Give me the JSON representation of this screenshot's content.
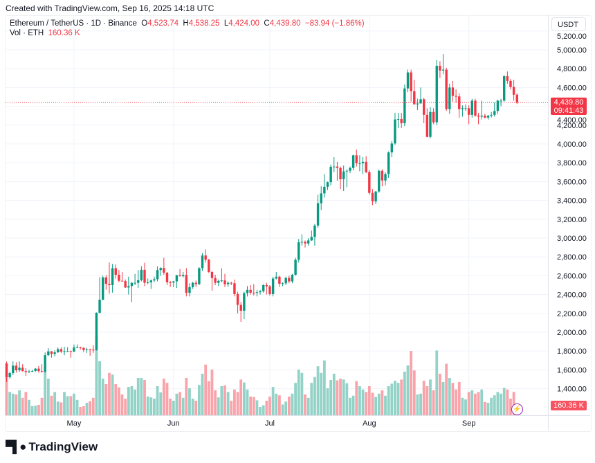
{
  "credit": "Created with TradingView.com, Sep 16, 2025 14:18 UTC",
  "legend": {
    "symbol": "Ethereum / TetherUS · 1D · Binance",
    "open_label": "O",
    "open": "4,523.74",
    "high_label": "H",
    "high": "4,538.25",
    "low_label": "L",
    "low": "4,424.00",
    "close_label": "C",
    "close": "4,439.80",
    "change": "−83.94 (−1.86%)",
    "vol_label": "Vol · ETH",
    "vol_value": "160.36 K"
  },
  "price_axis": {
    "unit": "USDT",
    "last_price": "4,439.80",
    "countdown": "09:41:43",
    "volume_tag": "160.36 K"
  },
  "logo_text": "TradingView",
  "colors": {
    "up": "#089981",
    "down": "#f23645",
    "up_volume": "#92d2c7",
    "down_volume": "#f9a3aa",
    "grid": "#f0f3fa",
    "price_line": "#f23645"
  },
  "icons": {
    "live": "lightning-icon",
    "logo": "tradingview-logo-icon"
  },
  "chart_data": {
    "type": "candlestick",
    "title": "",
    "xlabel": "",
    "ylabel": "",
    "ylim": [
      1200,
      5200
    ],
    "y_ticks": [
      "1,400.00",
      "1,600.00",
      "1,800.00",
      "2,000.00",
      "2,200.00",
      "2,400.00",
      "2,600.00",
      "2,800.00",
      "3,000.00",
      "3,200.00",
      "3,400.00",
      "3,600.00",
      "3,800.00",
      "4,000.00",
      "4,200.00",
      "4,400.00",
      "4,600.00",
      "4,800.00",
      "5,000.00",
      "5,200.00"
    ],
    "x_ticks": [
      {
        "label": "May",
        "date": "2025-05-01"
      },
      {
        "label": "Jun",
        "date": "2025-06-01"
      },
      {
        "label": "Jul",
        "date": "2025-07-01"
      },
      {
        "label": "Aug",
        "date": "2025-08-01"
      },
      {
        "label": "Sep",
        "date": "2025-09-01"
      }
    ],
    "grid": true,
    "last_price": 4439.8,
    "columns": [
      "date",
      "open",
      "high",
      "low",
      "close",
      "volume_k"
    ],
    "candles": [
      [
        "2025-04-10",
        1668,
        1688,
        1471,
        1522,
        1070
      ],
      [
        "2025-04-11",
        1522,
        1580,
        1505,
        1566,
        560
      ],
      [
        "2025-04-12",
        1566,
        1690,
        1544,
        1645,
        520
      ],
      [
        "2025-04-13",
        1645,
        1680,
        1570,
        1595,
        500
      ],
      [
        "2025-04-14",
        1595,
        1690,
        1580,
        1623,
        600
      ],
      [
        "2025-04-15",
        1623,
        1660,
        1580,
        1588,
        420
      ],
      [
        "2025-04-16",
        1588,
        1618,
        1535,
        1577,
        560
      ],
      [
        "2025-04-17",
        1577,
        1600,
        1565,
        1583,
        370
      ],
      [
        "2025-04-18",
        1583,
        1600,
        1575,
        1588,
        220
      ],
      [
        "2025-04-19",
        1588,
        1620,
        1580,
        1613,
        230
      ],
      [
        "2025-04-20",
        1613,
        1640,
        1570,
        1587,
        250
      ],
      [
        "2025-04-21",
        1587,
        1660,
        1570,
        1580,
        420
      ],
      [
        "2025-04-22",
        1580,
        1785,
        1570,
        1756,
        1100
      ],
      [
        "2025-04-23",
        1756,
        1830,
        1745,
        1796,
        880
      ],
      [
        "2025-04-24",
        1796,
        1800,
        1730,
        1769,
        470
      ],
      [
        "2025-04-25",
        1769,
        1807,
        1741,
        1786,
        560
      ],
      [
        "2025-04-26",
        1786,
        1838,
        1781,
        1820,
        330
      ],
      [
        "2025-04-27",
        1820,
        1840,
        1780,
        1792,
        310
      ],
      [
        "2025-04-28",
        1792,
        1845,
        1755,
        1798,
        560
      ],
      [
        "2025-04-29",
        1798,
        1840,
        1790,
        1799,
        460
      ],
      [
        "2025-04-30",
        1799,
        1805,
        1730,
        1793,
        460
      ],
      [
        "2025-05-01",
        1793,
        1870,
        1790,
        1838,
        520
      ],
      [
        "2025-05-02",
        1838,
        1870,
        1830,
        1842,
        370
      ],
      [
        "2025-05-03",
        1842,
        1845,
        1815,
        1834,
        200
      ],
      [
        "2025-05-04",
        1834,
        1838,
        1790,
        1810,
        220
      ],
      [
        "2025-05-05",
        1810,
        1835,
        1780,
        1816,
        300
      ],
      [
        "2025-05-06",
        1816,
        1825,
        1750,
        1814,
        340
      ],
      [
        "2025-05-07",
        1814,
        1860,
        1780,
        1810,
        420
      ],
      [
        "2025-05-08",
        1810,
        2210,
        1805,
        2207,
        1900
      ],
      [
        "2025-05-09",
        2207,
        2585,
        2200,
        2345,
        1300
      ],
      [
        "2025-05-10",
        2345,
        2600,
        2340,
        2582,
        880
      ],
      [
        "2025-05-11",
        2582,
        2605,
        2450,
        2514,
        750
      ],
      [
        "2025-05-12",
        2514,
        2740,
        2410,
        2500,
        1020
      ],
      [
        "2025-05-13",
        2500,
        2725,
        2420,
        2680,
        980
      ],
      [
        "2025-05-14",
        2680,
        2720,
        2570,
        2610,
        750
      ],
      [
        "2025-05-15",
        2610,
        2660,
        2530,
        2546,
        670
      ],
      [
        "2025-05-16",
        2546,
        2640,
        2540,
        2543,
        500
      ],
      [
        "2025-05-17",
        2543,
        2560,
        2470,
        2475,
        400
      ],
      [
        "2025-05-18",
        2475,
        2590,
        2400,
        2490,
        680
      ],
      [
        "2025-05-19",
        2490,
        2530,
        2320,
        2525,
        700
      ],
      [
        "2025-05-20",
        2525,
        2620,
        2500,
        2525,
        620
      ],
      [
        "2025-05-21",
        2525,
        2660,
        2470,
        2552,
        900
      ],
      [
        "2025-05-22",
        2552,
        2700,
        2540,
        2663,
        900
      ],
      [
        "2025-05-23",
        2663,
        2738,
        2490,
        2525,
        850
      ],
      [
        "2025-05-24",
        2525,
        2570,
        2510,
        2530,
        450
      ],
      [
        "2025-05-25",
        2530,
        2560,
        2460,
        2550,
        430
      ],
      [
        "2025-05-26",
        2550,
        2590,
        2530,
        2563,
        400
      ],
      [
        "2025-05-27",
        2563,
        2700,
        2540,
        2660,
        700
      ],
      [
        "2025-05-28",
        2660,
        2690,
        2600,
        2682,
        550
      ],
      [
        "2025-05-29",
        2682,
        2790,
        2610,
        2632,
        880
      ],
      [
        "2025-05-30",
        2632,
        2640,
        2500,
        2530,
        780
      ],
      [
        "2025-05-31",
        2530,
        2545,
        2480,
        2528,
        400
      ],
      [
        "2025-06-01",
        2528,
        2545,
        2480,
        2540,
        350
      ],
      [
        "2025-06-02",
        2540,
        2610,
        2470,
        2605,
        520
      ],
      [
        "2025-06-03",
        2605,
        2670,
        2590,
        2595,
        560
      ],
      [
        "2025-06-04",
        2595,
        2640,
        2580,
        2608,
        420
      ],
      [
        "2025-06-05",
        2608,
        2680,
        2380,
        2418,
        900
      ],
      [
        "2025-06-06",
        2418,
        2520,
        2380,
        2479,
        650
      ],
      [
        "2025-06-07",
        2479,
        2535,
        2460,
        2525,
        400
      ],
      [
        "2025-06-08",
        2525,
        2550,
        2480,
        2510,
        350
      ],
      [
        "2025-06-09",
        2510,
        2690,
        2500,
        2680,
        730
      ],
      [
        "2025-06-10",
        2680,
        2840,
        2650,
        2815,
        1000
      ],
      [
        "2025-06-11",
        2815,
        2880,
        2740,
        2770,
        1220
      ],
      [
        "2025-06-12",
        2770,
        2780,
        2630,
        2640,
        820
      ],
      [
        "2025-06-13",
        2640,
        2650,
        2440,
        2575,
        1100
      ],
      [
        "2025-06-14",
        2575,
        2610,
        2500,
        2525,
        600
      ],
      [
        "2025-06-15",
        2525,
        2560,
        2490,
        2545,
        430
      ],
      [
        "2025-06-16",
        2545,
        2680,
        2530,
        2550,
        700
      ],
      [
        "2025-06-17",
        2550,
        2620,
        2480,
        2510,
        720
      ],
      [
        "2025-06-18",
        2510,
        2540,
        2480,
        2525,
        560
      ],
      [
        "2025-06-19",
        2525,
        2535,
        2500,
        2520,
        350
      ],
      [
        "2025-06-20",
        2520,
        2560,
        2380,
        2405,
        620
      ],
      [
        "2025-06-21",
        2405,
        2430,
        2200,
        2290,
        560
      ],
      [
        "2025-06-22",
        2290,
        2320,
        2110,
        2228,
        860
      ],
      [
        "2025-06-23",
        2228,
        2430,
        2140,
        2415,
        790
      ],
      [
        "2025-06-24",
        2415,
        2490,
        2380,
        2450,
        620
      ],
      [
        "2025-06-25",
        2450,
        2500,
        2400,
        2420,
        450
      ],
      [
        "2025-06-26",
        2420,
        2510,
        2390,
        2418,
        440
      ],
      [
        "2025-06-27",
        2418,
        2450,
        2380,
        2425,
        360
      ],
      [
        "2025-06-28",
        2425,
        2450,
        2400,
        2435,
        200
      ],
      [
        "2025-06-29",
        2435,
        2510,
        2420,
        2500,
        240
      ],
      [
        "2025-06-30",
        2500,
        2525,
        2400,
        2487,
        350
      ],
      [
        "2025-07-01",
        2487,
        2500,
        2390,
        2405,
        450
      ],
      [
        "2025-07-02",
        2405,
        2590,
        2380,
        2570,
        680
      ],
      [
        "2025-07-03",
        2570,
        2640,
        2560,
        2590,
        520
      ],
      [
        "2025-07-04",
        2590,
        2600,
        2480,
        2515,
        480
      ],
      [
        "2025-07-05",
        2515,
        2530,
        2490,
        2520,
        260
      ],
      [
        "2025-07-06",
        2520,
        2590,
        2500,
        2577,
        330
      ],
      [
        "2025-07-07",
        2577,
        2600,
        2520,
        2540,
        450
      ],
      [
        "2025-07-08",
        2540,
        2620,
        2520,
        2610,
        520
      ],
      [
        "2025-07-09",
        2610,
        2790,
        2600,
        2770,
        780
      ],
      [
        "2025-07-10",
        2770,
        2990,
        2740,
        2955,
        1100
      ],
      [
        "2025-07-11",
        2955,
        3040,
        2920,
        2960,
        1020
      ],
      [
        "2025-07-12",
        2960,
        2975,
        2900,
        2943,
        500
      ],
      [
        "2025-07-13",
        2943,
        3000,
        2920,
        2975,
        420
      ],
      [
        "2025-07-14",
        2975,
        3080,
        2970,
        3013,
        780
      ],
      [
        "2025-07-15",
        3013,
        3150,
        2920,
        3133,
        920
      ],
      [
        "2025-07-16",
        3133,
        3460,
        3110,
        3370,
        1180
      ],
      [
        "2025-07-17",
        3370,
        3550,
        3300,
        3475,
        1020
      ],
      [
        "2025-07-18",
        3475,
        3680,
        3430,
        3545,
        1320
      ],
      [
        "2025-07-19",
        3545,
        3600,
        3510,
        3594,
        650
      ],
      [
        "2025-07-20",
        3594,
        3780,
        3560,
        3758,
        850
      ],
      [
        "2025-07-21",
        3758,
        3860,
        3700,
        3760,
        1000
      ],
      [
        "2025-07-22",
        3760,
        3810,
        3610,
        3745,
        840
      ],
      [
        "2025-07-23",
        3745,
        3760,
        3520,
        3625,
        880
      ],
      [
        "2025-07-24",
        3625,
        3770,
        3500,
        3708,
        860
      ],
      [
        "2025-07-25",
        3708,
        3730,
        3540,
        3715,
        770
      ],
      [
        "2025-07-26",
        3715,
        3760,
        3690,
        3745,
        420
      ],
      [
        "2025-07-27",
        3745,
        3885,
        3720,
        3880,
        470
      ],
      [
        "2025-07-28",
        3880,
        3940,
        3760,
        3795,
        820
      ],
      [
        "2025-07-29",
        3795,
        3880,
        3710,
        3795,
        700
      ],
      [
        "2025-07-30",
        3795,
        3860,
        3680,
        3810,
        620
      ],
      [
        "2025-07-31",
        3810,
        3870,
        3690,
        3700,
        560
      ],
      [
        "2025-08-01",
        3700,
        3720,
        3460,
        3480,
        700
      ],
      [
        "2025-08-02",
        3480,
        3520,
        3350,
        3390,
        540
      ],
      [
        "2025-08-03",
        3390,
        3500,
        3360,
        3495,
        440
      ],
      [
        "2025-08-04",
        3495,
        3730,
        3480,
        3715,
        520
      ],
      [
        "2025-08-05",
        3715,
        3730,
        3550,
        3612,
        600
      ],
      [
        "2025-08-06",
        3612,
        3700,
        3560,
        3680,
        470
      ],
      [
        "2025-08-07",
        3680,
        3920,
        3640,
        3910,
        700
      ],
      [
        "2025-08-08",
        3910,
        4030,
        3860,
        4005,
        760
      ],
      [
        "2025-08-09",
        4005,
        4330,
        3990,
        4260,
        830
      ],
      [
        "2025-08-10",
        4260,
        4330,
        4170,
        4265,
        780
      ],
      [
        "2025-08-11",
        4265,
        4330,
        4170,
        4220,
        860
      ],
      [
        "2025-08-12",
        4220,
        4630,
        4190,
        4590,
        1050
      ],
      [
        "2025-08-13",
        4590,
        4790,
        4550,
        4760,
        1200
      ],
      [
        "2025-08-14",
        4760,
        4790,
        4450,
        4560,
        1550
      ],
      [
        "2025-08-15",
        4560,
        4680,
        4420,
        4420,
        1080
      ],
      [
        "2025-08-16",
        4420,
        4480,
        4360,
        4430,
        500
      ],
      [
        "2025-08-17",
        4430,
        4600,
        4430,
        4475,
        520
      ],
      [
        "2025-08-18",
        4475,
        4490,
        4220,
        4310,
        830
      ],
      [
        "2025-08-19",
        4310,
        4380,
        4070,
        4075,
        700
      ],
      [
        "2025-08-20",
        4075,
        4390,
        4060,
        4340,
        860
      ],
      [
        "2025-08-21",
        4340,
        4380,
        4210,
        4230,
        600
      ],
      [
        "2025-08-22",
        4230,
        4890,
        4200,
        4830,
        1560
      ],
      [
        "2025-08-23",
        4830,
        4880,
        4700,
        4780,
        1000
      ],
      [
        "2025-08-24",
        4780,
        4955,
        4740,
        4790,
        800
      ],
      [
        "2025-08-25",
        4790,
        4810,
        4350,
        4370,
        1240
      ],
      [
        "2025-08-26",
        4370,
        4640,
        4320,
        4600,
        900
      ],
      [
        "2025-08-27",
        4600,
        4670,
        4450,
        4510,
        780
      ],
      [
        "2025-08-28",
        4510,
        4580,
        4440,
        4505,
        620
      ],
      [
        "2025-08-29",
        4505,
        4540,
        4280,
        4370,
        800
      ],
      [
        "2025-08-30",
        4370,
        4410,
        4290,
        4380,
        420
      ],
      [
        "2025-08-31",
        4380,
        4420,
        4350,
        4380,
        380
      ],
      [
        "2025-09-01",
        4380,
        4410,
        4210,
        4310,
        560
      ],
      [
        "2025-09-02",
        4310,
        4480,
        4280,
        4460,
        600
      ],
      [
        "2025-09-03",
        4460,
        4480,
        4290,
        4300,
        520
      ],
      [
        "2025-09-04",
        4300,
        4330,
        4210,
        4290,
        560
      ],
      [
        "2025-09-05",
        4290,
        4460,
        4260,
        4300,
        620
      ],
      [
        "2025-09-06",
        4300,
        4320,
        4270,
        4280,
        320
      ],
      [
        "2025-09-07",
        4280,
        4310,
        4260,
        4300,
        300
      ],
      [
        "2025-09-08",
        4300,
        4340,
        4280,
        4310,
        420
      ],
      [
        "2025-09-09",
        4310,
        4440,
        4290,
        4350,
        480
      ],
      [
        "2025-09-10",
        4350,
        4470,
        4320,
        4460,
        560
      ],
      [
        "2025-09-11",
        4460,
        4480,
        4400,
        4460,
        520
      ],
      [
        "2025-09-12",
        4460,
        4730,
        4450,
        4720,
        660
      ],
      [
        "2025-09-13",
        4720,
        4770,
        4640,
        4670,
        620
      ],
      [
        "2025-09-14",
        4670,
        4690,
        4580,
        4605,
        400
      ],
      [
        "2025-09-15",
        4605,
        4680,
        4460,
        4523,
        560
      ],
      [
        "2025-09-16",
        4523.74,
        4538.25,
        4424.0,
        4439.8,
        160.36
      ]
    ]
  }
}
